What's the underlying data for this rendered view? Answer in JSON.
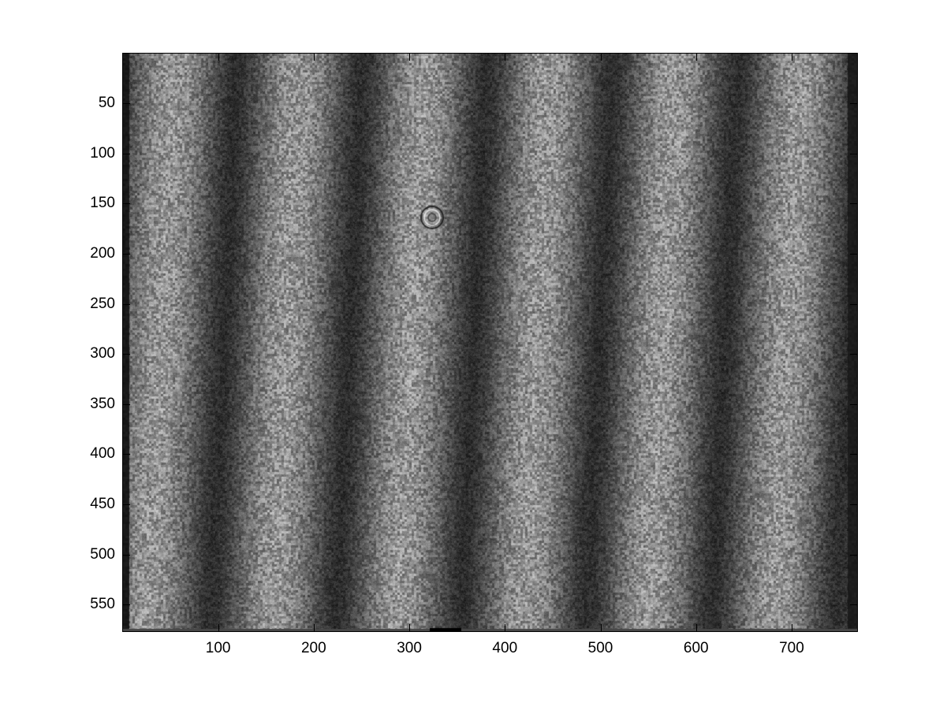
{
  "figure": {
    "background": "#ffffff",
    "image": {
      "description_kind": "grayscale interference fringe image",
      "colormap": "gray",
      "fringe_count": 5
    },
    "axes": {
      "xlim": [
        0.5,
        768.5
      ],
      "ylim": [
        0.5,
        576.5
      ],
      "y_direction": "reversed",
      "x_ticks": [
        "100",
        "200",
        "300",
        "400",
        "500",
        "600",
        "700"
      ],
      "y_ticks": [
        "50",
        "100",
        "150",
        "200",
        "250",
        "300",
        "350",
        "400",
        "450",
        "500",
        "550"
      ]
    }
  }
}
